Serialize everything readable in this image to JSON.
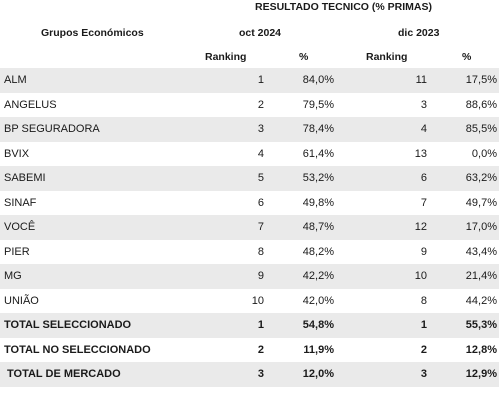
{
  "header": {
    "title": "RESULTADO TECNICO (% PRIMAS)",
    "group_label": "Grupos Económicos",
    "period1": "oct 2024",
    "period2": "dic 2023",
    "ranking_label": "Ranking",
    "percent_label": "%"
  },
  "rows": [
    {
      "name": "ALM",
      "rank_oct": "1",
      "pct_oct": "84,0%",
      "rank_dic": "11",
      "pct_dic": "17,5%"
    },
    {
      "name": "ANGELUS",
      "rank_oct": "2",
      "pct_oct": "79,5%",
      "rank_dic": "3",
      "pct_dic": "88,6%"
    },
    {
      "name": "BP SEGURADORA",
      "rank_oct": "3",
      "pct_oct": "78,4%",
      "rank_dic": "4",
      "pct_dic": "85,5%"
    },
    {
      "name": "BVIX",
      "rank_oct": "4",
      "pct_oct": "61,4%",
      "rank_dic": "13",
      "pct_dic": "0,0%"
    },
    {
      "name": "SABEMI",
      "rank_oct": "5",
      "pct_oct": "53,2%",
      "rank_dic": "6",
      "pct_dic": "63,2%"
    },
    {
      "name": "SINAF",
      "rank_oct": "6",
      "pct_oct": "49,8%",
      "rank_dic": "7",
      "pct_dic": "49,7%"
    },
    {
      "name": "VOCÊ",
      "rank_oct": "7",
      "pct_oct": "48,7%",
      "rank_dic": "12",
      "pct_dic": "17,0%"
    },
    {
      "name": "PIER",
      "rank_oct": "8",
      "pct_oct": "48,2%",
      "rank_dic": "9",
      "pct_dic": "43,4%"
    },
    {
      "name": "MG",
      "rank_oct": "9",
      "pct_oct": "42,2%",
      "rank_dic": "10",
      "pct_dic": "21,4%"
    },
    {
      "name": "UNIÃO",
      "rank_oct": "10",
      "pct_oct": "42,0%",
      "rank_dic": "8",
      "pct_dic": "44,2%"
    }
  ],
  "totals": [
    {
      "name": "TOTAL SELECCIONADO",
      "rank_oct": "1",
      "pct_oct": "54,8%",
      "rank_dic": "1",
      "pct_dic": "55,3%"
    },
    {
      "name": "TOTAL NO SELECCIONADO",
      "rank_oct": "2",
      "pct_oct": "11,9%",
      "rank_dic": "2",
      "pct_dic": "12,8%"
    },
    {
      "name": "TOTAL DE MERCADO",
      "rank_oct": "3",
      "pct_oct": "12,0%",
      "rank_dic": "3",
      "pct_dic": "12,9%"
    }
  ]
}
